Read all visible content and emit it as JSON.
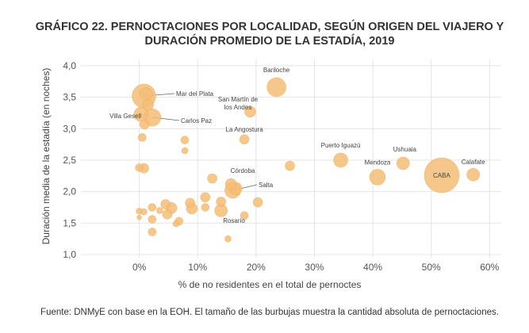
{
  "chart_data": {
    "type": "scatter",
    "title_line1": "GRÁFICO 22. PERNOCTACIONES POR LOCALIDAD, SEGÚN ORIGEN DEL VIAJERO Y",
    "title_line2": "DURACIÓN PROMEDIO DE LA ESTADÍA, 2019",
    "xlabel": "% de no residentes en el total de pernoctes",
    "ylabel": "Duración media de la estadía (en noches)",
    "xlim": [
      -10,
      62
    ],
    "ylim": [
      0.95,
      4.1
    ],
    "x_ticks": [
      0,
      10,
      20,
      30,
      40,
      50,
      60
    ],
    "x_tick_labels": [
      "0%",
      "10%",
      "20%",
      "30%",
      "40%",
      "50%",
      "60%"
    ],
    "y_ticks": [
      1.0,
      1.5,
      2.0,
      2.5,
      3.0,
      3.5,
      4.0
    ],
    "y_tick_labels": [
      "1,0",
      "1,5",
      "2,0",
      "2,5",
      "3,0",
      "3,5",
      "4,0"
    ],
    "grid": true,
    "bubble_color": "#f5bd77",
    "bubble_edge_color": "#f0a548",
    "source": "Fuente: DNMyE con base en la EOH. El tamaño de las burbujas muestra la cantidad absoluta de pernoctaciones.",
    "points": [
      {
        "name": "Bariloche",
        "x": 23.5,
        "y": 3.66,
        "size": 12
      },
      {
        "name": "Mar del Plata",
        "x": 0.8,
        "y": 3.52,
        "size": 15
      },
      {
        "name": "Villa Gesell",
        "x": 0.3,
        "y": 3.23,
        "size": 9
      },
      {
        "name": "Carlos Paz",
        "x": 2.2,
        "y": 3.18,
        "size": 11
      },
      {
        "name": "San Martín de los Andes",
        "x": 19.0,
        "y": 3.27,
        "size": 7
      },
      {
        "name": "La Angostura",
        "x": 18.0,
        "y": 2.83,
        "size": 6
      },
      {
        "name": "Puerto Iguazú",
        "x": 34.5,
        "y": 2.5,
        "size": 9
      },
      {
        "name": "Ushuaia",
        "x": 45.2,
        "y": 2.45,
        "size": 8
      },
      {
        "name": "Mendoza",
        "x": 40.8,
        "y": 2.23,
        "size": 10
      },
      {
        "name": "CABA",
        "x": 51.8,
        "y": 2.26,
        "size": 22
      },
      {
        "name": "Calafate",
        "x": 57.2,
        "y": 2.27,
        "size": 8
      },
      {
        "name": "Córdoba",
        "x": 12.5,
        "y": 2.21,
        "size": 6
      },
      {
        "name": "Salta",
        "x": 16.0,
        "y": 2.02,
        "size": 10
      },
      {
        "name": "Rosario",
        "x": 14.0,
        "y": 1.7,
        "size": 8
      },
      {
        "x": 1.2,
        "y": 3.55,
        "size": 8
      },
      {
        "x": 1.5,
        "y": 3.38,
        "size": 7
      },
      {
        "x": 0.9,
        "y": 3.07,
        "size": 6
      },
      {
        "x": 0.5,
        "y": 2.86,
        "size": 5
      },
      {
        "x": 7.8,
        "y": 2.82,
        "size": 5
      },
      {
        "x": 7.8,
        "y": 2.65,
        "size": 4
      },
      {
        "x": 0.0,
        "y": 2.38,
        "size": 5
      },
      {
        "x": 0.8,
        "y": 2.37,
        "size": 6
      },
      {
        "x": 25.8,
        "y": 2.41,
        "size": 6
      },
      {
        "x": 15.7,
        "y": 2.12,
        "size": 7
      },
      {
        "x": 16.5,
        "y": 2.05,
        "size": 8
      },
      {
        "x": 20.3,
        "y": 1.83,
        "size": 6
      },
      {
        "x": 14.0,
        "y": 1.84,
        "size": 6
      },
      {
        "x": 11.3,
        "y": 1.91,
        "size": 6
      },
      {
        "x": 8.7,
        "y": 1.82,
        "size": 6
      },
      {
        "x": 9.0,
        "y": 1.73,
        "size": 7
      },
      {
        "x": 11.3,
        "y": 1.75,
        "size": 5
      },
      {
        "x": 4.5,
        "y": 1.8,
        "size": 6
      },
      {
        "x": 5.5,
        "y": 1.74,
        "size": 7
      },
      {
        "x": 2.2,
        "y": 1.75,
        "size": 5
      },
      {
        "x": 3.5,
        "y": 1.7,
        "size": 4
      },
      {
        "x": 4.8,
        "y": 1.64,
        "size": 6
      },
      {
        "x": 6.8,
        "y": 1.53,
        "size": 5
      },
      {
        "x": 6.3,
        "y": 1.49,
        "size": 4
      },
      {
        "x": 2.2,
        "y": 1.56,
        "size": 5
      },
      {
        "x": 0.0,
        "y": 1.69,
        "size": 4
      },
      {
        "x": 0.8,
        "y": 1.68,
        "size": 4
      },
      {
        "x": 0.0,
        "y": 1.59,
        "size": 3
      },
      {
        "x": 18.0,
        "y": 1.62,
        "size": 5
      },
      {
        "x": 2.2,
        "y": 1.36,
        "size": 5
      },
      {
        "x": 15.2,
        "y": 1.25,
        "size": 4
      }
    ]
  }
}
